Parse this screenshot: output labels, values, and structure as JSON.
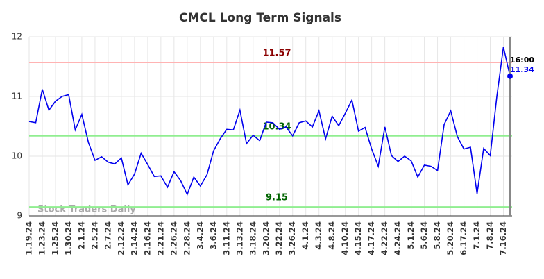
{
  "chart_data": {
    "type": "line",
    "title": "CMCL Long Term Signals",
    "categories": [
      "1.19.24",
      null,
      "1.23.24",
      null,
      "1.25.24",
      null,
      "1.30.24",
      null,
      "2.1.24",
      null,
      "2.5.24",
      null,
      "2.7.24",
      null,
      "2.12.24",
      null,
      "2.14.24",
      null,
      "2.16.24",
      null,
      "2.21.24",
      null,
      "2.26.24",
      null,
      "2.28.24",
      null,
      "3.4.24",
      null,
      "3.6.24",
      null,
      "3.11.24",
      null,
      "3.13.24",
      null,
      "3.18.24",
      null,
      "3.20.24",
      null,
      "3.22.24",
      null,
      "3.26.24",
      null,
      "4.1.24",
      null,
      "4.3.24",
      null,
      "4.8.24",
      null,
      "4.10.24",
      null,
      "4.15.24",
      null,
      "4.17.24",
      null,
      "4.22.24",
      null,
      "4.24.24",
      null,
      "5.1.24",
      null,
      "5.6.24",
      null,
      "5.8.24",
      null,
      "5.20.24",
      null,
      "6.17.24",
      null,
      "7.1.24",
      null,
      "7.8.24",
      null,
      "7.16.24",
      null
    ],
    "series": [
      {
        "name": "CMCL",
        "color": "#0000ee",
        "values": [
          10.58,
          10.56,
          11.12,
          10.77,
          10.92,
          11.0,
          11.03,
          10.44,
          10.7,
          10.23,
          9.93,
          9.99,
          9.9,
          9.87,
          9.97,
          9.52,
          9.7,
          10.05,
          9.86,
          9.66,
          9.67,
          9.48,
          9.74,
          9.59,
          9.36,
          9.65,
          9.5,
          9.69,
          10.09,
          10.29,
          10.45,
          10.44,
          10.77,
          10.21,
          10.35,
          10.26,
          10.57,
          10.56,
          10.45,
          10.49,
          10.34,
          10.56,
          10.59,
          10.49,
          10.76,
          10.29,
          10.67,
          10.51,
          10.72,
          10.94,
          10.42,
          10.48,
          10.12,
          9.83,
          10.49,
          10.01,
          9.91,
          10.0,
          9.92,
          9.65,
          9.85,
          9.83,
          9.76,
          10.53,
          10.76,
          10.33,
          10.12,
          10.15,
          9.37,
          10.13,
          10.01,
          11.0,
          11.83,
          11.34
        ]
      }
    ],
    "ylim": [
      9,
      12
    ],
    "yticks": [
      9,
      10,
      11,
      12
    ],
    "grid": true,
    "hlines": [
      {
        "value": 11.57,
        "color": "#ffb3b3",
        "label_color": "#8b0000"
      },
      {
        "value": 10.34,
        "color": "#90ee90",
        "label_color": "#006400"
      },
      {
        "value": 9.15,
        "color": "#90ee90",
        "label_color": "#006400"
      }
    ],
    "last_time": "16:00",
    "watermark": "Stock Traders Daily"
  }
}
